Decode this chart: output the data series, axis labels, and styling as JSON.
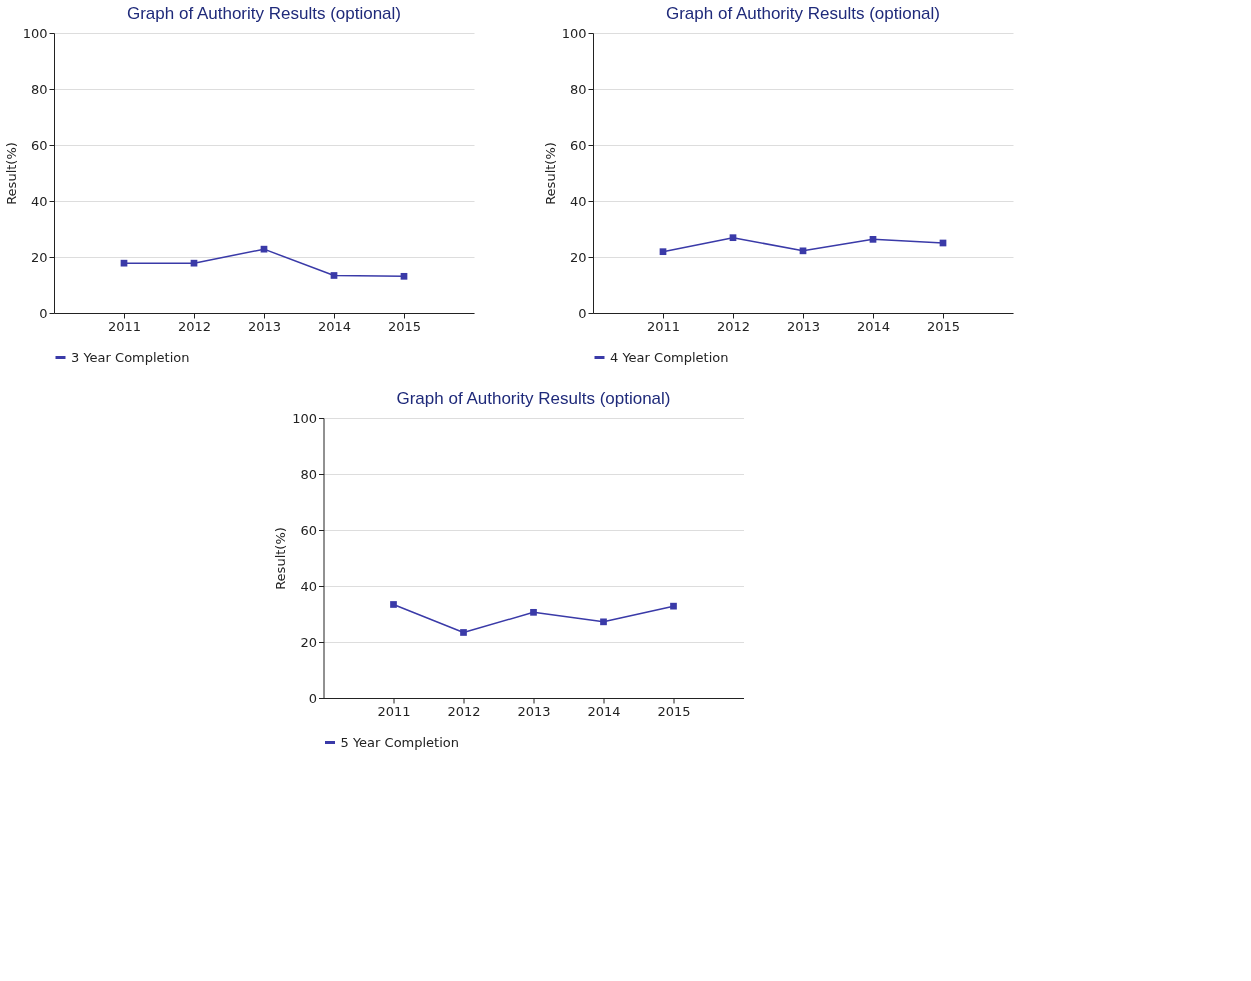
{
  "chart_data": [
    {
      "type": "line",
      "title": "Graph of Authority Results (optional)",
      "ylabel": "Result(%)",
      "categories": [
        "2011",
        "2012",
        "2013",
        "2014",
        "2015"
      ],
      "series": [
        {
          "name": "3 Year Completion",
          "color": "#3a3aa8",
          "values": [
            17.8,
            17.8,
            22.8,
            13.4,
            13.1
          ]
        }
      ],
      "ylim": [
        0,
        100
      ],
      "yticks": [
        0,
        20,
        40,
        60,
        80,
        100
      ],
      "grid": "y",
      "legend": "bottom",
      "marker": "square"
    },
    {
      "type": "line",
      "title": "Graph of Authority Results (optional)",
      "ylabel": "Result(%)",
      "categories": [
        "2011",
        "2012",
        "2013",
        "2014",
        "2015"
      ],
      "series": [
        {
          "name": "4 Year Completion",
          "color": "#3a3aa8",
          "values": [
            21.9,
            26.9,
            22.2,
            26.3,
            25.0
          ]
        }
      ],
      "ylim": [
        0,
        100
      ],
      "yticks": [
        0,
        20,
        40,
        60,
        80,
        100
      ],
      "grid": "y",
      "legend": "bottom",
      "marker": "square"
    },
    {
      "type": "line",
      "title": "Graph of Authority Results (optional)",
      "ylabel": "Result(%)",
      "categories": [
        "2011",
        "2012",
        "2013",
        "2014",
        "2015"
      ],
      "series": [
        {
          "name": "5 Year Completion",
          "color": "#3a3aa8",
          "values": [
            33.4,
            23.4,
            30.6,
            27.2,
            32.8
          ]
        }
      ],
      "ylim": [
        0,
        100
      ],
      "yticks": [
        0,
        20,
        40,
        60,
        80,
        100
      ],
      "grid": "y",
      "legend": "bottom",
      "marker": "square"
    }
  ]
}
